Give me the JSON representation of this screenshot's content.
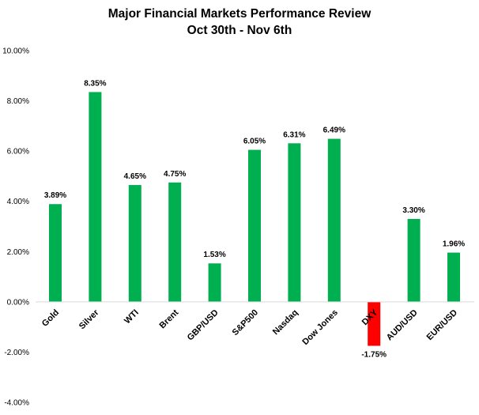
{
  "chart_data": {
    "type": "bar",
    "title": "Major Financial Markets Performance Review",
    "subtitle": "Oct 30th - Nov 6th",
    "xlabel": "",
    "ylabel": "",
    "ylim": [
      -4,
      10
    ],
    "yticks": [
      10,
      8,
      6,
      4,
      2,
      0,
      -2,
      -4
    ],
    "ytick_labels": [
      "10.00%",
      "8.00%",
      "6.00%",
      "4.00%",
      "2.00%",
      "0.00%",
      "-2.00%",
      "-4.00%"
    ],
    "grid": false,
    "categories": [
      "Gold",
      "Silver",
      "WTI",
      "Brent",
      "GBP/USD",
      "S&P500",
      "Nasdaq",
      "Dow Jones",
      "DXY",
      "AUD/USD",
      "EUR/USD"
    ],
    "values": [
      3.89,
      8.35,
      4.65,
      4.75,
      1.53,
      6.05,
      6.31,
      6.49,
      -1.75,
      3.3,
      1.96
    ],
    "data_labels": [
      "3.89%",
      "8.35%",
      "4.65%",
      "4.75%",
      "1.53%",
      "6.05%",
      "6.31%",
      "6.49%",
      "-1.75%",
      "3.30%",
      "1.96%"
    ],
    "colors": {
      "positive": "#00B050",
      "negative": "#FF0000",
      "axis": "#D9D9D9"
    }
  }
}
